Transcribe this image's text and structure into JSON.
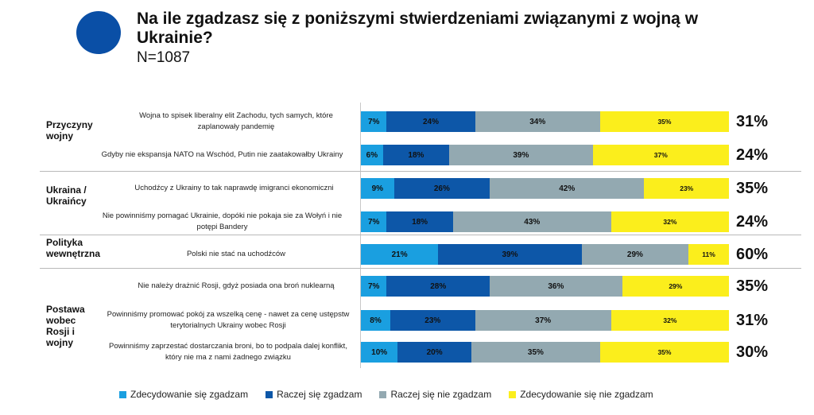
{
  "header": {
    "title": "Na ile zgadzasz się z poniższymi stwierdzeniami związanymi z wojną w Ukrainie?",
    "subtitle": "N=1087"
  },
  "colors": {
    "accent": "#0a4fa6",
    "zdecydowanie_zgadzam": "#1a9fe0",
    "raczej_zgadzam": "#0d57a8",
    "raczej_nie_zgadzam": "#93a9b1",
    "zdecydowanie_nie_zgadzam": "#fbee1c"
  },
  "chart_data": {
    "type": "bar",
    "orientation": "horizontal",
    "stacked": true,
    "percent_scale": true,
    "title": "Na ile zgadzasz się z poniższymi stwierdzeniami związanymi z wojną w Ukrainie?",
    "subtitle": "N=1087",
    "legend_position": "bottom",
    "grid": false,
    "groups": [
      {
        "label": "Przyczyny wojny",
        "rows": [
          0,
          1
        ]
      },
      {
        "label": "Ukraina / Ukraińcy",
        "rows": [
          2,
          3
        ]
      },
      {
        "label": "Polityka wewnętrzna",
        "rows": [
          4
        ]
      },
      {
        "label": "Postawa wobec Rosji i wojny",
        "rows": [
          5,
          6,
          7
        ]
      }
    ],
    "categories": [
      "Wojna to spisek liberalny elit Zachodu, tych samych, które zaplanowały pandemię",
      "Gdyby nie ekspansja NATO na Wschód, Putin nie zaatakowałby Ukrainy",
      "Uchodźcy z Ukrainy to tak naprawdę imigranci ekonomiczni",
      "Nie powinniśmy pomagać Ukrainie, dopóki nie pokaja sie za Wołyń i nie potępi Bandery",
      "Polski nie stać na uchodźców",
      "Nie należy drażnić Rosji, gdyż posiada ona broń nuklearną",
      "Powinniśmy promować pokój za wszelką cenę - nawet za cenę ustępstw terytorialnych Ukrainy wobec Rosji",
      "Powinniśmy zaprzestać dostarczania broni, bo to podpala dalej konflikt, który nie ma z nami żadnego związku"
    ],
    "series": [
      {
        "name": "Zdecydowanie się zgadzam",
        "values": [
          7,
          6,
          9,
          7,
          21,
          7,
          8,
          10
        ]
      },
      {
        "name": "Raczej się zgadzam",
        "values": [
          24,
          18,
          26,
          18,
          39,
          28,
          23,
          20
        ]
      },
      {
        "name": "Raczej się nie zgadzam",
        "values": [
          34,
          39,
          42,
          43,
          29,
          36,
          37,
          35
        ]
      },
      {
        "name": "Zdecydowanie się nie zgadzam",
        "values": [
          35,
          37,
          23,
          32,
          11,
          29,
          32,
          35
        ]
      }
    ],
    "agree_totals": [
      31,
      24,
      35,
      24,
      60,
      35,
      31,
      30
    ]
  }
}
